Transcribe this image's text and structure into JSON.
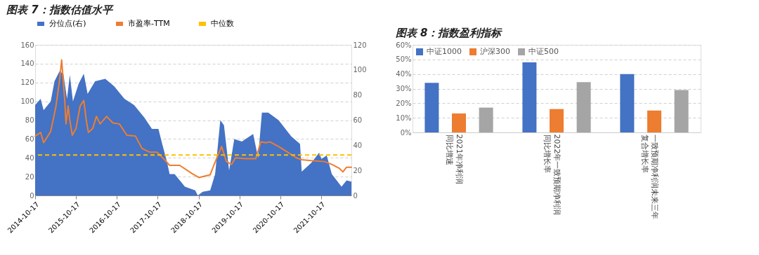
{
  "chart_data": [
    {
      "type": "line",
      "title": "图表 7：指数估值水平",
      "xlim": [
        "2014-10-17",
        "2022-07-14"
      ],
      "xticks": [
        "2014-10-17",
        "2015-10-17",
        "2016-10-17",
        "2017-10-17",
        "2018-10-17",
        "2019-10-17",
        "2020-10-17",
        "2021-10-17"
      ],
      "ylim": [
        0,
        160
      ],
      "yticks": [
        0,
        20,
        40,
        60,
        80,
        100,
        120,
        140,
        160
      ],
      "y2lim": [
        0,
        120
      ],
      "y2ticks": [
        0,
        20,
        40,
        60,
        80,
        100,
        120
      ],
      "grid": "y",
      "legend": "top",
      "series": [
        {
          "name": "分位点(右)",
          "type": "area",
          "axis": "y2",
          "color": "#4472c4",
          "x": [
            "2014-10-17",
            "2014-12-05",
            "2015-01-01",
            "2015-03-05",
            "2015-04-08",
            "2015-05-23",
            "2015-06-26",
            "2015-07-29",
            "2015-08-23",
            "2015-09-20",
            "2015-11-10",
            "2015-12-26",
            "2016-01-29",
            "2016-04-05",
            "2016-07-05",
            "2016-09-23",
            "2016-12-23",
            "2017-03-20",
            "2017-06-20",
            "2017-08-26",
            "2017-10-23",
            "2017-11-26",
            "2018-01-10",
            "2018-01-31",
            "2018-03-17",
            "2018-06-17",
            "2018-09-17",
            "2018-10-10",
            "2018-11-23",
            "2019-01-29",
            "2019-03-14",
            "2019-04-29",
            "2019-06-01",
            "2019-07-17",
            "2019-09-01",
            "2019-11-08",
            "2020-02-17",
            "2020-04-01",
            "2020-05-05",
            "2020-07-01",
            "2020-10-01",
            "2021-01-23",
            "2021-04-11",
            "2021-04-26",
            "2021-07-20",
            "2021-09-29",
            "2021-10-20",
            "2021-12-05",
            "2022-01-20",
            "2022-04-17",
            "2022-06-01",
            "2022-07-14"
          ],
          "values": [
            72,
            77,
            68,
            75,
            91,
            99,
            97,
            77,
            96,
            75,
            89,
            97,
            81,
            91,
            93,
            87,
            77,
            72,
            62,
            53,
            53,
            41,
            26,
            17,
            17,
            7,
            4,
            0,
            3,
            4,
            17,
            60,
            56,
            20,
            45,
            43,
            49,
            30,
            66,
            66,
            60,
            47,
            41,
            19,
            26,
            34,
            29,
            32,
            17,
            7,
            12,
            11
          ]
        },
        {
          "name": "市盈率-TTM",
          "type": "line",
          "color": "#ed7d31",
          "x": [
            "2014-10-17",
            "2014-12-05",
            "2015-01-01",
            "2015-03-05",
            "2015-04-20",
            "2015-05-23",
            "2015-06-11",
            "2015-07-08",
            "2015-07-20",
            "2015-08-08",
            "2015-08-23",
            "2015-09-14",
            "2015-10-17",
            "2015-11-23",
            "2015-12-26",
            "2016-01-17",
            "2016-02-05",
            "2016-03-14",
            "2016-04-17",
            "2016-05-20",
            "2016-07-17",
            "2016-09-11",
            "2016-11-08",
            "2017-01-14",
            "2017-04-01",
            "2017-05-29",
            "2017-08-05",
            "2017-10-11",
            "2017-12-17",
            "2018-01-31",
            "2018-05-01",
            "2018-08-23",
            "2018-10-20",
            "2019-01-29",
            "2019-03-02",
            "2019-05-11",
            "2019-06-23",
            "2019-08-08",
            "2019-09-11",
            "2019-12-11",
            "2020-03-11",
            "2020-04-26",
            "2020-06-11",
            "2020-07-14",
            "2020-10-01",
            "2020-12-08",
            "2021-03-08",
            "2021-04-26",
            "2021-07-20",
            "2021-11-14",
            "2022-01-20",
            "2022-03-26",
            "2022-04-29",
            "2022-06-01",
            "2022-07-14"
          ],
          "values": [
            63,
            67,
            56,
            68,
            94,
            122,
            144,
            102,
            76,
            95,
            80,
            64,
            71,
            95,
            101,
            80,
            67,
            71,
            84,
            76,
            84,
            77,
            76,
            64,
            63,
            50,
            46,
            46,
            38,
            32,
            32,
            23,
            19,
            22,
            32,
            52,
            36,
            33,
            40,
            39,
            39,
            57,
            56,
            57,
            52,
            47,
            40,
            38,
            37,
            36,
            33,
            29,
            25,
            30,
            30
          ]
        }
      ],
      "ref_lines": [
        {
          "axis": "y",
          "value": 43,
          "label": "中位数",
          "color": "#ffc000",
          "line_style": "dashed"
        }
      ]
    },
    {
      "type": "bar",
      "title": "图表 8：指数盈利指标",
      "categories": [
        "2021年净利润同比增速",
        "2022年一致预期净利润同比增长率",
        "一致预期净利润未来三年复合增长率"
      ],
      "ylim": [
        0,
        60
      ],
      "yticks": [
        {
          "value": 0,
          "label": "0%"
        },
        {
          "value": 10,
          "label": "10%"
        },
        {
          "value": 20,
          "label": "20%"
        },
        {
          "value": 30,
          "label": "30%"
        },
        {
          "value": 40,
          "label": "40%"
        },
        {
          "value": 50,
          "label": "50%"
        },
        {
          "value": 60,
          "label": "60%"
        }
      ],
      "grid": "y",
      "legend": "top left",
      "series": [
        {
          "name": "中证1000",
          "color": "#4472c4",
          "values": [
            34,
            48,
            40
          ]
        },
        {
          "name": "沪深300",
          "color": "#ed7d31",
          "values": [
            13,
            16,
            15
          ]
        },
        {
          "name": "中证500",
          "color": "#a5a5a5",
          "values": [
            17,
            34.5,
            29
          ]
        }
      ]
    }
  ]
}
